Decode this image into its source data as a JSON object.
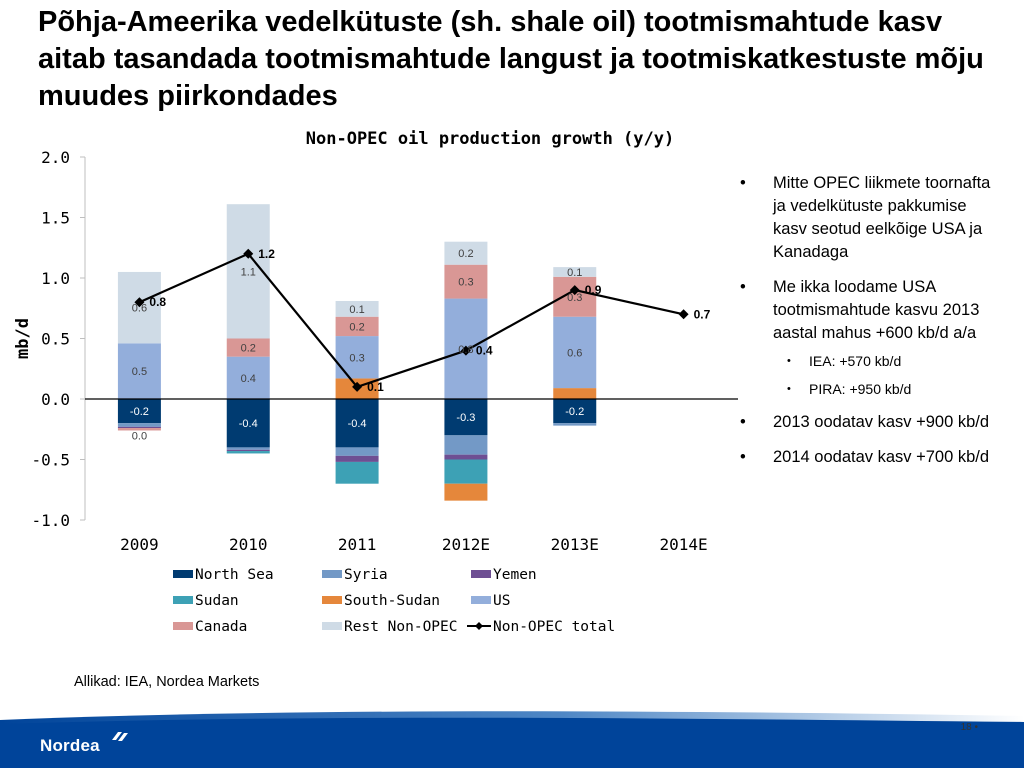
{
  "slide": {
    "title": "Põhja-Ameerika vedelkütuste (sh. shale oil) tootmismahtude kasv aitab tasandada tootmismahtude langust ja tootmiskatkestuste mõju muudes piirkondades",
    "source": "Allikad: IEA, Nordea Markets",
    "page_number": "18 •",
    "logo_text": "Nordea"
  },
  "bullets": [
    {
      "text": "Mitte OPEC liikmete toornafta ja vedelkütuste pakkumise kasv seotud eelkõige USA  ja Kanadaga",
      "sub": []
    },
    {
      "text": "Me ikka loodame USA tootmismahtude kasvu 2013 aastal mahus +600 kb/d a/a",
      "sub": [
        "IEA: +570 kb/d",
        "PIRA: +950 kb/d"
      ]
    },
    {
      "text": "2013 oodatav kasv +900 kb/d",
      "sub": []
    },
    {
      "text": "2014 oodatav kasv +700 kb/d",
      "sub": []
    }
  ],
  "colors": {
    "North Sea": "#003b71",
    "Syria": "#7399c6",
    "Yemen": "#6e4f93",
    "Sudan": "#3da1b5",
    "South-Sudan": "#e5873b",
    "US": "#93aedb",
    "Canada": "#d99795",
    "Rest Non-OPEC": "#cfdbe6",
    "Non-OPEC total": "#000000",
    "footer_blue": "#00449a"
  },
  "chart_data": {
    "type": "bar",
    "stacked": true,
    "title": "Non-OPEC oil production growth (y/y)",
    "ylabel": "mb/d",
    "xlabel": "",
    "ylim": [
      -1.0,
      2.0
    ],
    "yticks": [
      "2.0",
      "1.5",
      "1.0",
      "0.5",
      "0.0",
      "-0.5",
      "-1.0"
    ],
    "categories": [
      "2009",
      "2010",
      "2011",
      "2012E",
      "2013E",
      "2014E"
    ],
    "series": [
      {
        "name": "North Sea",
        "values": [
          -0.2,
          -0.4,
          -0.4,
          -0.3,
          -0.2,
          null
        ],
        "labels": [
          "-0.2",
          "-0.4",
          "-0.4",
          "-0.3",
          "-0.2",
          ""
        ]
      },
      {
        "name": "Syria",
        "values": [
          -0.03,
          -0.02,
          -0.07,
          -0.16,
          -0.02,
          null
        ],
        "labels": [
          "",
          "",
          "",
          "",
          "",
          ""
        ]
      },
      {
        "name": "Yemen",
        "values": [
          -0.01,
          -0.01,
          -0.05,
          -0.04,
          0,
          null
        ],
        "labels": [
          "",
          "",
          "",
          "",
          "",
          ""
        ]
      },
      {
        "name": "Sudan",
        "values": [
          0,
          -0.02,
          -0.18,
          -0.2,
          0,
          null
        ],
        "labels": [
          "",
          "",
          "",
          "",
          "",
          ""
        ]
      },
      {
        "name": "South-Sudan",
        "values": [
          0,
          0,
          0.17,
          -0.14,
          0.09,
          null
        ],
        "labels": [
          "",
          "",
          "",
          "",
          "",
          ""
        ]
      },
      {
        "name": "US",
        "values": [
          0.46,
          0.35,
          0.35,
          0.83,
          0.59,
          null
        ],
        "labels": [
          "0.5",
          "0.4",
          "0.3",
          "0.8",
          "0.6",
          ""
        ]
      },
      {
        "name": "Canada",
        "values": [
          -0.02,
          0.15,
          0.16,
          0.28,
          0.33,
          null
        ],
        "labels": [
          "0.0",
          "0.2",
          "0.2",
          "0.3",
          "0.3",
          ""
        ]
      },
      {
        "name": "Rest Non-OPEC",
        "values": [
          0.59,
          1.11,
          0.13,
          0.19,
          0.08,
          null
        ],
        "labels": [
          "0.6",
          "1.1",
          "0.1",
          "0.2",
          "0.1",
          ""
        ]
      }
    ],
    "total": {
      "name": "Non-OPEC total",
      "values": [
        0.8,
        1.2,
        0.1,
        0.4,
        0.9,
        0.7
      ],
      "labels": [
        "0.8",
        "1.2",
        "0.1",
        "0.4",
        "0.9",
        "0.7"
      ]
    },
    "legend": {
      "placement": "bottom",
      "entries": [
        "North Sea",
        "Syria",
        "Yemen",
        "Sudan",
        "South-Sudan",
        "US",
        "Canada",
        "Rest Non-OPEC",
        "Non-OPEC total"
      ]
    },
    "grid": false
  }
}
